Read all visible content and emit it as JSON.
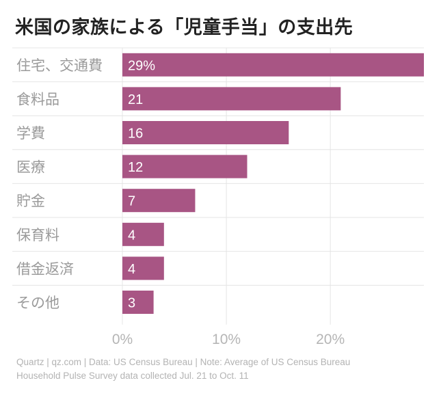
{
  "title": "米国の家族による「児童手当」の支出先",
  "chart_data": {
    "type": "bar",
    "orientation": "horizontal",
    "title": "米国の家族による「児童手当」の支出先",
    "categories": [
      "住宅、交通費",
      "食料品",
      "学費",
      "医療",
      "貯金",
      "保育料",
      "借金返済",
      "その他"
    ],
    "values": [
      29,
      21,
      16,
      12,
      7,
      4,
      4,
      3
    ],
    "data_labels": [
      "29%",
      "21",
      "16",
      "12",
      "7",
      "4",
      "4",
      "3"
    ],
    "xlim": [
      0,
      29
    ],
    "xticks": [
      0,
      10,
      20
    ],
    "xtick_labels": [
      "0%",
      "10%",
      "20%"
    ],
    "grid": true,
    "colors": {
      "bar": "#a85584",
      "grid": "#e4e4e4",
      "category_text": "#9a9a9a",
      "tick_text": "#b5b5b5",
      "label_text": "#ffffff"
    }
  },
  "footer": {
    "line1": "Quartz | qz.com | Data: US Census Bureau | Note: Average of US Census Bureau",
    "line2": "Household Pulse Survey data collected Jul. 21 to Oct. 11"
  }
}
